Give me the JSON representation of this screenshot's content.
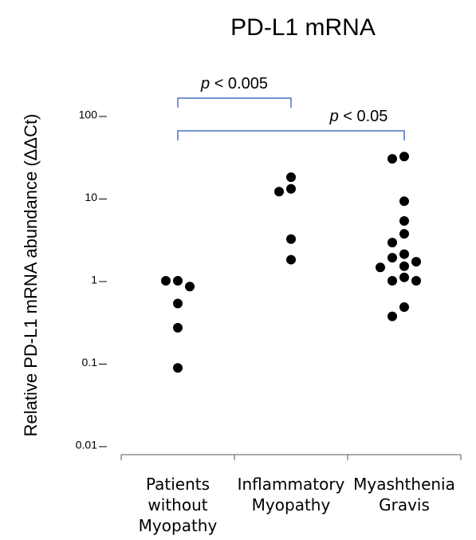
{
  "chart_data": {
    "type": "dotplot",
    "title": "PD-L1 mRNA",
    "ylabel": "Relative PD-L1 mRNA abundance (ΔΔCt)",
    "categories": [
      "Patients without Myopathy",
      "Inflammatory Myopathy",
      "Myashthenia Gravis"
    ],
    "values": [
      [
        1.0,
        1.0,
        0.85,
        0.53,
        0.27,
        0.088
      ],
      [
        18,
        13,
        12,
        3.2,
        1.8
      ],
      [
        32,
        30,
        9.2,
        5.3,
        3.7,
        2.9,
        2.1,
        1.9,
        1.7,
        1.5,
        1.45,
        1.1,
        1.0,
        1.0,
        0.48,
        0.37
      ]
    ],
    "color": "#000000",
    "log_scale": true,
    "ylim": [
      0.008,
      100
    ],
    "yticks": [
      100,
      10,
      1,
      0.1,
      0.01
    ],
    "grid": false,
    "annotations": [
      {
        "text": "p < 0.005",
        "from": 0,
        "to": 1,
        "color": "#4472c4"
      },
      {
        "text": "p < 0.05",
        "from": 0,
        "to": 2,
        "color": "#4472c4"
      }
    ]
  }
}
